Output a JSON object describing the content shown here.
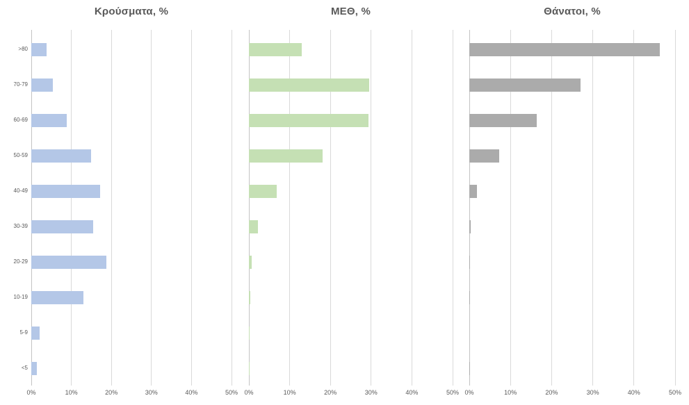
{
  "page": {
    "background": "#ffffff",
    "text_color": "#595959",
    "gridline_color": "#d9d9d9",
    "axis_line_color": "#c3c3c3"
  },
  "chart_data": {
    "type": "bar",
    "orientation": "horizontal",
    "grid": true,
    "legend": "none",
    "categories": [
      ">80",
      "70-79",
      "60-69",
      "50-59",
      "40-49",
      "30-39",
      "20-29",
      "10-19",
      "5-9",
      "<5"
    ],
    "x_ticks": [
      "0%",
      "10%",
      "20%",
      "30%",
      "40%",
      "50%"
    ],
    "xlim": [
      0,
      50
    ],
    "category_labels_shown_on_first_chart_only": true,
    "charts": [
      {
        "title": "Κρούσματα, %",
        "color": "#b4c7e7",
        "values": [
          3.9,
          5.4,
          8.9,
          14.9,
          17.2,
          15.5,
          18.7,
          13.0,
          2.1,
          1.4
        ]
      },
      {
        "title": "ΜΕΘ, %",
        "color": "#c5e0b4",
        "values": [
          13.0,
          29.5,
          29.4,
          18.1,
          6.8,
          2.2,
          0.6,
          0.3,
          0.1,
          0.1
        ]
      },
      {
        "title": "Θάνατοι, %",
        "color": "#ababab",
        "values": [
          46.2,
          27.0,
          16.4,
          7.3,
          1.9,
          0.3,
          0.2,
          0.2,
          0,
          0.2
        ]
      }
    ]
  }
}
